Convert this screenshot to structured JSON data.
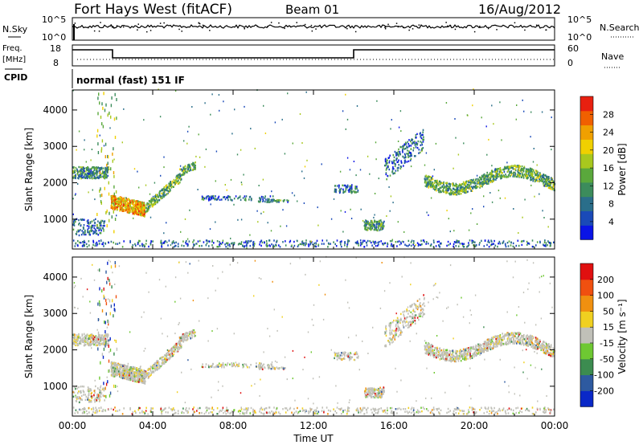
{
  "header": {
    "station": "Fort Hays West (fitACF)",
    "beam": "Beam 01",
    "date": "16/Aug/2012"
  },
  "noise_panel": {
    "left_label": "N.Sky",
    "right_label": "N.Search",
    "tick_top": "10^5",
    "tick_bottom": "10^0"
  },
  "freq_panel": {
    "left_label_line1": "Freq.",
    "left_label_line2": "[MHz]",
    "left_ticks": [
      "18",
      "8"
    ],
    "right_ticks": [
      "60",
      "0"
    ],
    "right_label": "Nave",
    "cpid_label": "CPID",
    "cpid_text": "normal (fast) 151 IF"
  },
  "chart_data": [
    {
      "type": "heatmap",
      "title": "",
      "xlabel": "",
      "ylabel": "Slant Range [km]",
      "x_ticks": [
        "00:00",
        "04:00",
        "08:00",
        "12:00",
        "16:00",
        "20:00",
        "00:00"
      ],
      "xlim": [
        0,
        24
      ],
      "y_ticks": [
        1000,
        2000,
        3000,
        4000
      ],
      "ylim": [
        180,
        4550
      ],
      "colorbar": {
        "label": "Power [dB]",
        "ticks": [
          "4",
          "8",
          "12",
          "16",
          "20",
          "24",
          "28"
        ],
        "colors": [
          "#0a14e6",
          "#1a4ab8",
          "#2a6e8a",
          "#3c8c5c",
          "#5aa83c",
          "#a8c81e",
          "#f0d000",
          "#f0a000",
          "#f06000",
          "#e82010"
        ]
      },
      "regions": [
        {
          "name": "morning echo band",
          "t": [
            0.0,
            1.8
          ],
          "r": [
            2100,
            2400
          ],
          "level": 0.35
        },
        {
          "name": "post-midnight enhancement",
          "t": [
            1.9,
            4.6
          ],
          "r": [
            1050,
            1600
          ],
          "level": 0.72
        },
        {
          "name": "evening scatter",
          "t": [
            16.5,
            24.0
          ],
          "r": [
            1550,
            2450
          ],
          "level": 0.4
        },
        {
          "name": "near-range ground scatter",
          "t": [
            0.0,
            24.0
          ],
          "r": [
            200,
            420
          ],
          "level": 0.25
        }
      ]
    },
    {
      "type": "heatmap",
      "title": "",
      "xlabel": "Time UT",
      "ylabel": "Slant Range [km]",
      "x_ticks": [
        "00:00",
        "04:00",
        "08:00",
        "12:00",
        "16:00",
        "20:00",
        "00:00"
      ],
      "xlim": [
        0,
        24
      ],
      "y_ticks": [
        1000,
        2000,
        3000,
        4000
      ],
      "ylim": [
        180,
        4550
      ],
      "colorbar": {
        "label": "Velocity [m s⁻¹]",
        "ticks": [
          "200",
          "100",
          "50",
          "15",
          "-15",
          "-50",
          "-100",
          "-200"
        ],
        "colors": [
          "#0a28c8",
          "#2e5aa0",
          "#3c8c50",
          "#6ec832",
          "#c0c0b8",
          "#f0d020",
          "#f09010",
          "#f05010",
          "#e01010"
        ]
      },
      "regions": [
        {
          "name": "morning echo band",
          "t": [
            0.0,
            1.8
          ],
          "r": [
            2100,
            2400
          ],
          "velocity": 0
        },
        {
          "name": "post-midnight enhancement",
          "t": [
            1.9,
            4.6
          ],
          "r": [
            1050,
            1600
          ],
          "velocity": -20
        },
        {
          "name": "evening scatter",
          "t": [
            16.5,
            24.0
          ],
          "r": [
            1550,
            2450
          ],
          "velocity": 0
        }
      ]
    }
  ]
}
